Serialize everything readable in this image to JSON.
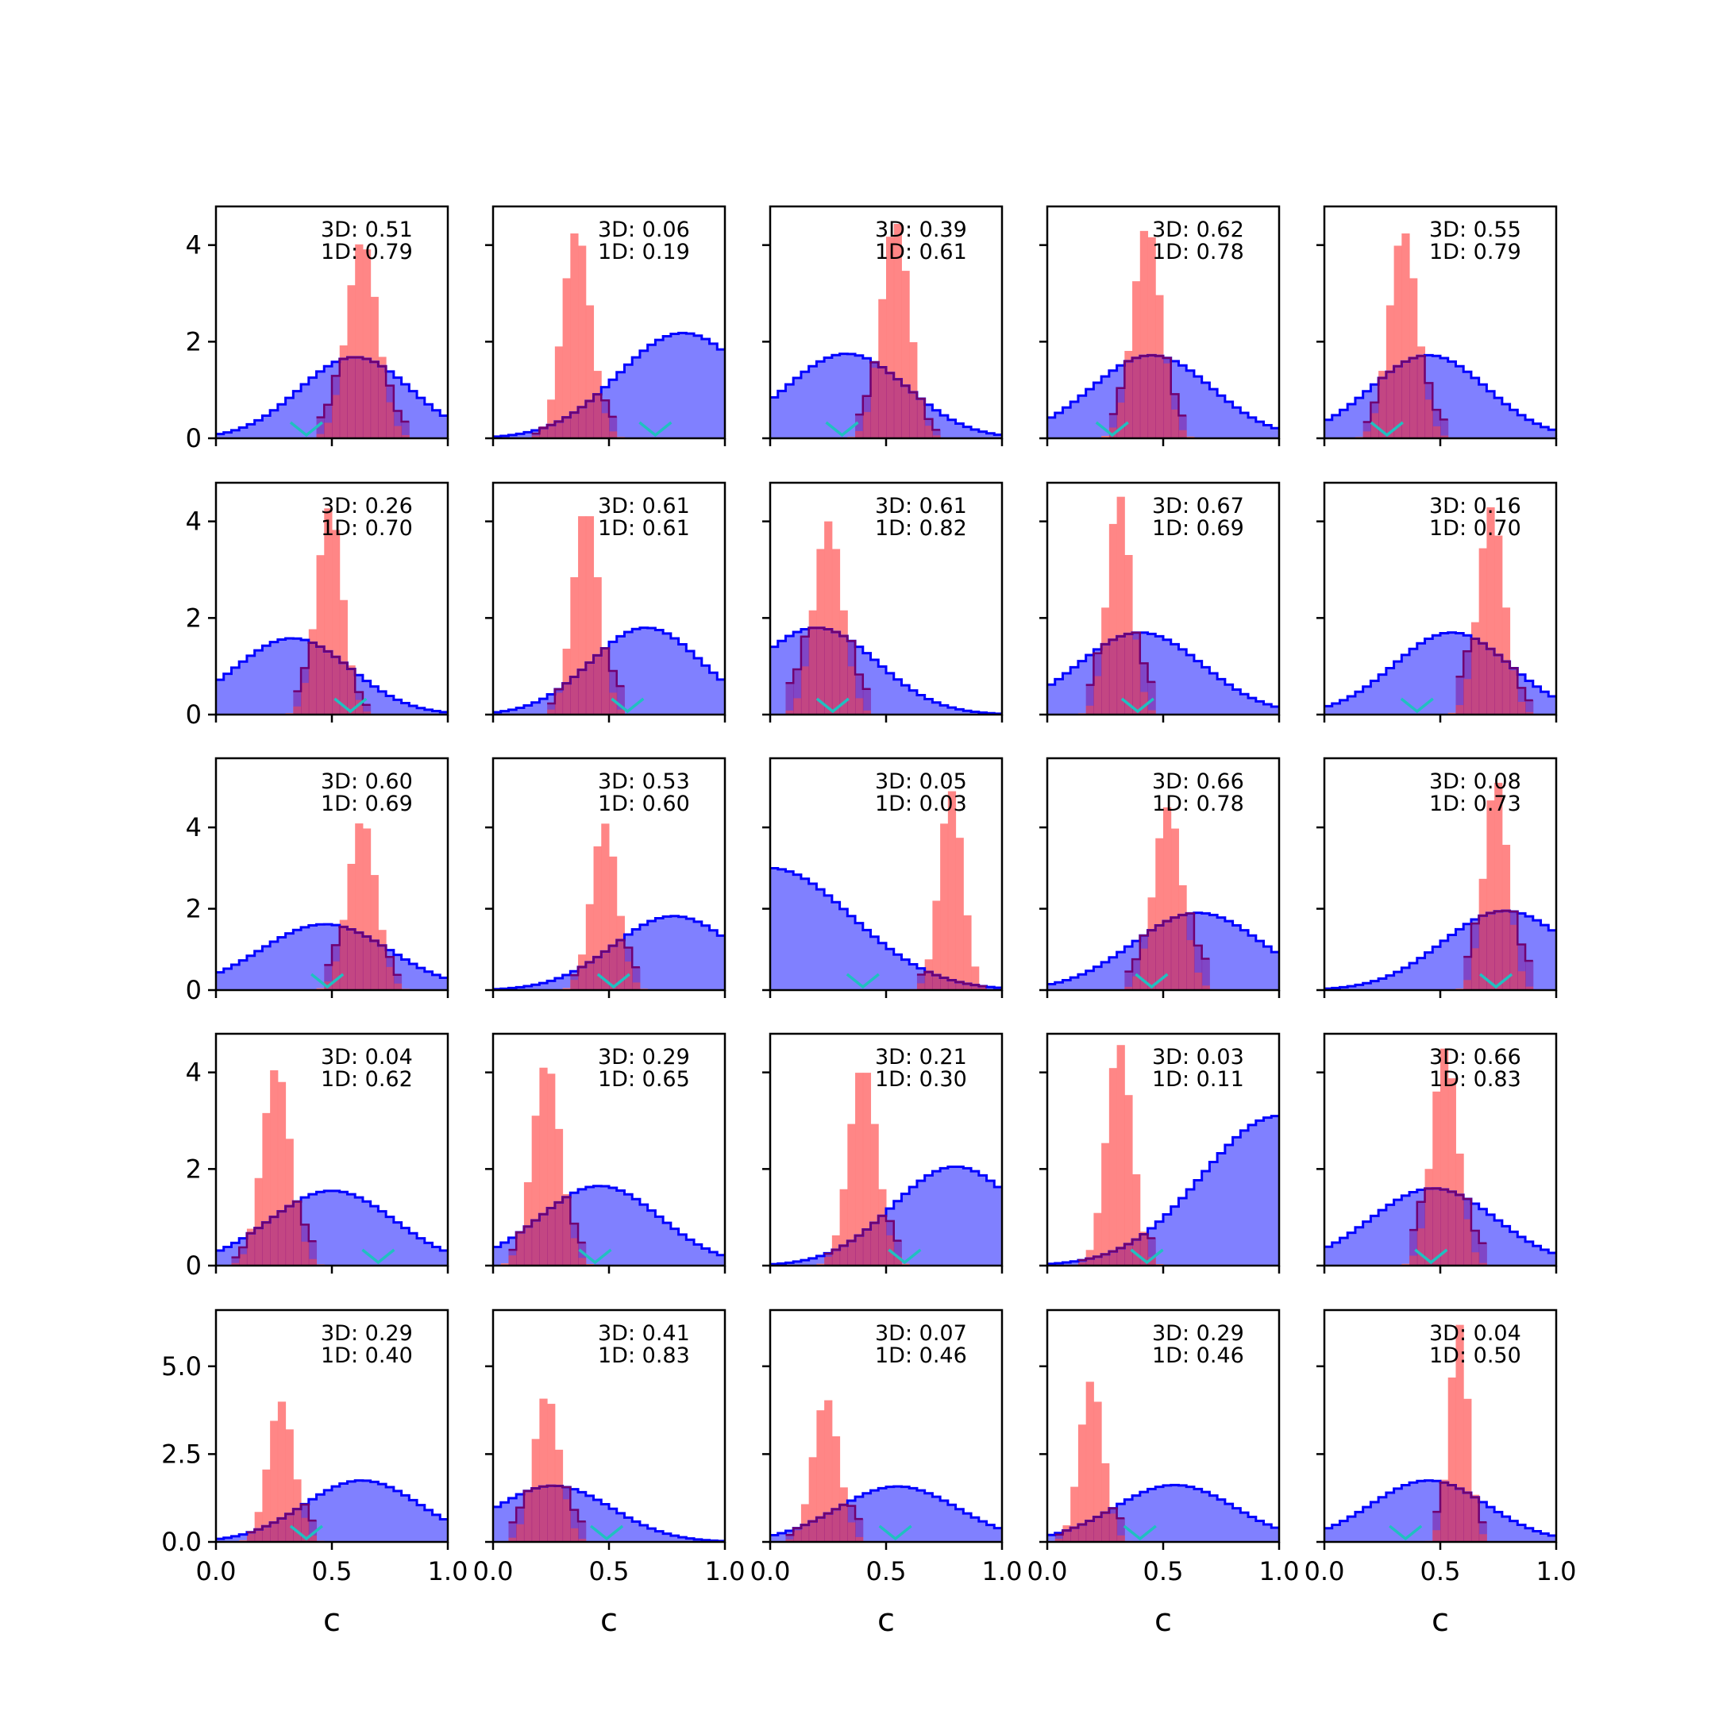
{
  "chart_data": {
    "type": "histogram-grid",
    "rows": 5,
    "cols": 5,
    "xlabel": "c",
    "xlim": [
      0.0,
      1.0
    ],
    "xticks": [
      "0.0",
      "0.5",
      "1.0"
    ],
    "row_ylim": [
      [
        0,
        4.8
      ],
      [
        0,
        4.8
      ],
      [
        0,
        5.7
      ],
      [
        0,
        4.8
      ],
      [
        0,
        6.6
      ]
    ],
    "row_yticks": [
      [
        "0",
        "2",
        "4"
      ],
      [
        "0",
        "2",
        "4"
      ],
      [
        "0",
        "2",
        "4"
      ],
      [
        "0",
        "2",
        "4"
      ],
      [
        "0.0",
        "2.5",
        "5.0"
      ]
    ],
    "colors": {
      "broad": "#0000ff",
      "broad_fill": "#8080ff",
      "narrow": "#ff8080",
      "overlap": "#800080",
      "marker": "#20c0c0"
    },
    "panels": [
      {
        "label3d": "3D: 0.51",
        "label1d": "1D: 0.79",
        "broad_peak": 0.6,
        "broad_width": 0.24,
        "broad_height": 1.68,
        "narrow_peak": 0.63,
        "narrow_width": 0.065,
        "narrow_height": 4.1,
        "overlap_fraction": 0.25,
        "marker": 0.39
      },
      {
        "label3d": "3D: 0.06",
        "label1d": "1D: 0.19",
        "broad_peak": 0.82,
        "broad_width": 0.28,
        "broad_height": 2.18,
        "narrow_peak": 0.36,
        "narrow_width": 0.06,
        "narrow_height": 4.3,
        "overlap_fraction": 0.25,
        "marker": 0.7
      },
      {
        "label3d": "3D: 0.39",
        "label1d": "1D: 0.61",
        "broad_peak": 0.33,
        "broad_width": 0.26,
        "broad_height": 1.75,
        "narrow_peak": 0.54,
        "narrow_width": 0.06,
        "narrow_height": 4.5,
        "overlap_fraction": 0.2,
        "marker": 0.31
      },
      {
        "label3d": "3D: 0.62",
        "label1d": "1D: 0.78",
        "broad_peak": 0.45,
        "broad_width": 0.26,
        "broad_height": 1.72,
        "narrow_peak": 0.43,
        "narrow_width": 0.06,
        "narrow_height": 4.4,
        "overlap_fraction": 0.2,
        "marker": 0.28
      },
      {
        "label3d": "3D: 0.55",
        "label1d": "1D: 0.79",
        "broad_peak": 0.45,
        "broad_width": 0.25,
        "broad_height": 1.72,
        "narrow_peak": 0.34,
        "narrow_width": 0.06,
        "narrow_height": 4.3,
        "overlap_fraction": 0.2,
        "marker": 0.27
      },
      {
        "label3d": "3D: 0.26",
        "label1d": "1D: 0.70",
        "broad_peak": 0.33,
        "broad_width": 0.25,
        "broad_height": 1.58,
        "narrow_peak": 0.49,
        "narrow_width": 0.055,
        "narrow_height": 4.3,
        "overlap_fraction": 0.2,
        "marker": 0.58
      },
      {
        "label3d": "3D: 0.61",
        "label1d": "1D: 0.61",
        "broad_peak": 0.66,
        "broad_width": 0.24,
        "broad_height": 1.8,
        "narrow_peak": 0.4,
        "narrow_width": 0.055,
        "narrow_height": 4.3,
        "overlap_fraction": 0.3,
        "marker": 0.58
      },
      {
        "label3d": "3D: 0.61",
        "label1d": "1D: 0.82",
        "broad_peak": 0.2,
        "broad_width": 0.26,
        "broad_height": 1.8,
        "narrow_peak": 0.25,
        "narrow_width": 0.06,
        "narrow_height": 4.0,
        "overlap_fraction": 0.35,
        "marker": 0.27
      },
      {
        "label3d": "3D: 0.67",
        "label1d": "1D: 0.69",
        "broad_peak": 0.4,
        "broad_width": 0.27,
        "broad_height": 1.7,
        "narrow_peak": 0.31,
        "narrow_width": 0.05,
        "narrow_height": 4.55,
        "overlap_fraction": 0.35,
        "marker": 0.39
      },
      {
        "label3d": "3D: 0.16",
        "label1d": "1D: 0.70",
        "broad_peak": 0.55,
        "broad_width": 0.25,
        "broad_height": 1.7,
        "narrow_peak": 0.72,
        "narrow_width": 0.055,
        "narrow_height": 4.3,
        "overlap_fraction": 0.35,
        "marker": 0.4
      },
      {
        "label3d": "3D: 0.60",
        "label1d": "1D: 0.69",
        "broad_peak": 0.47,
        "broad_width": 0.28,
        "broad_height": 1.62,
        "narrow_peak": 0.63,
        "narrow_width": 0.06,
        "narrow_height": 4.2,
        "overlap_fraction": 0.25,
        "marker": 0.48
      },
      {
        "label3d": "3D: 0.53",
        "label1d": "1D: 0.60",
        "broad_peak": 0.78,
        "broad_width": 0.26,
        "broad_height": 1.82,
        "narrow_peak": 0.48,
        "narrow_width": 0.055,
        "narrow_height": 4.1,
        "overlap_fraction": 0.25,
        "marker": 0.52
      },
      {
        "label3d": "3D: 0.05",
        "label1d": "1D: 0.03",
        "broad_peak": 0.0,
        "broad_width": 0.35,
        "broad_height": 3.0,
        "narrow_peak": 0.78,
        "narrow_width": 0.05,
        "narrow_height": 4.9,
        "overlap_fraction": 0.4,
        "marker": 0.4
      },
      {
        "label3d": "3D: 0.66",
        "label1d": "1D: 0.78",
        "broad_peak": 0.65,
        "broad_width": 0.28,
        "broad_height": 1.9,
        "narrow_peak": 0.52,
        "narrow_width": 0.06,
        "narrow_height": 4.5,
        "overlap_fraction": 0.35,
        "marker": 0.45
      },
      {
        "label3d": "3D: 0.08",
        "label1d": "1D: 0.73",
        "broad_peak": 0.78,
        "broad_width": 0.27,
        "broad_height": 1.95,
        "narrow_peak": 0.74,
        "narrow_width": 0.05,
        "narrow_height": 5.2,
        "overlap_fraction": 0.35,
        "marker": 0.74
      },
      {
        "label3d": "3D: 0.04",
        "label1d": "1D: 0.62",
        "broad_peak": 0.5,
        "broad_width": 0.27,
        "broad_height": 1.55,
        "narrow_peak": 0.26,
        "narrow_width": 0.06,
        "narrow_height": 4.1,
        "overlap_fraction": 0.25,
        "marker": 0.7
      },
      {
        "label3d": "3D: 0.29",
        "label1d": "1D: 0.65",
        "broad_peak": 0.46,
        "broad_width": 0.26,
        "broad_height": 1.65,
        "narrow_peak": 0.23,
        "narrow_width": 0.06,
        "narrow_height": 4.2,
        "overlap_fraction": 0.2,
        "marker": 0.44
      },
      {
        "label3d": "3D: 0.21",
        "label1d": "1D: 0.30",
        "broad_peak": 0.8,
        "broad_width": 0.27,
        "broad_height": 2.05,
        "narrow_peak": 0.4,
        "narrow_width": 0.06,
        "narrow_height": 4.15,
        "overlap_fraction": 0.25,
        "marker": 0.58
      },
      {
        "label3d": "3D: 0.03",
        "label1d": "1D: 0.11",
        "broad_peak": 1.0,
        "broad_width": 0.33,
        "broad_height": 3.1,
        "narrow_peak": 0.31,
        "narrow_width": 0.055,
        "narrow_height": 4.6,
        "overlap_fraction": 0.5,
        "marker": 0.43
      },
      {
        "label3d": "3D: 0.66",
        "label1d": "1D: 0.83",
        "broad_peak": 0.47,
        "broad_width": 0.27,
        "broad_height": 1.6,
        "narrow_peak": 0.52,
        "narrow_width": 0.055,
        "narrow_height": 4.5,
        "overlap_fraction": 0.35,
        "marker": 0.46
      },
      {
        "label3d": "3D: 0.29",
        "label1d": "1D: 0.40",
        "broad_peak": 0.63,
        "broad_width": 0.25,
        "broad_height": 1.75,
        "narrow_peak": 0.28,
        "narrow_width": 0.055,
        "narrow_height": 4.0,
        "overlap_fraction": 0.35,
        "marker": 0.39
      },
      {
        "label3d": "3D: 0.41",
        "label1d": "1D: 0.83",
        "broad_peak": 0.26,
        "broad_width": 0.25,
        "broad_height": 1.6,
        "narrow_peak": 0.23,
        "narrow_width": 0.055,
        "narrow_height": 4.2,
        "overlap_fraction": 0.35,
        "marker": 0.49
      },
      {
        "label3d": "3D: 0.07",
        "label1d": "1D: 0.46",
        "broad_peak": 0.55,
        "broad_width": 0.26,
        "broad_height": 1.58,
        "narrow_peak": 0.24,
        "narrow_width": 0.055,
        "narrow_height": 4.1,
        "overlap_fraction": 0.4,
        "marker": 0.54
      },
      {
        "label3d": "3D: 0.29",
        "label1d": "1D: 0.46",
        "broad_peak": 0.55,
        "broad_width": 0.26,
        "broad_height": 1.62,
        "narrow_peak": 0.19,
        "narrow_width": 0.05,
        "narrow_height": 4.6,
        "overlap_fraction": 0.45,
        "marker": 0.4
      },
      {
        "label3d": "3D: 0.04",
        "label1d": "1D: 0.50",
        "broad_peak": 0.45,
        "broad_width": 0.25,
        "broad_height": 1.75,
        "narrow_peak": 0.58,
        "narrow_width": 0.04,
        "narrow_height": 6.2,
        "overlap_fraction": 0.3,
        "marker": 0.35
      }
    ]
  }
}
